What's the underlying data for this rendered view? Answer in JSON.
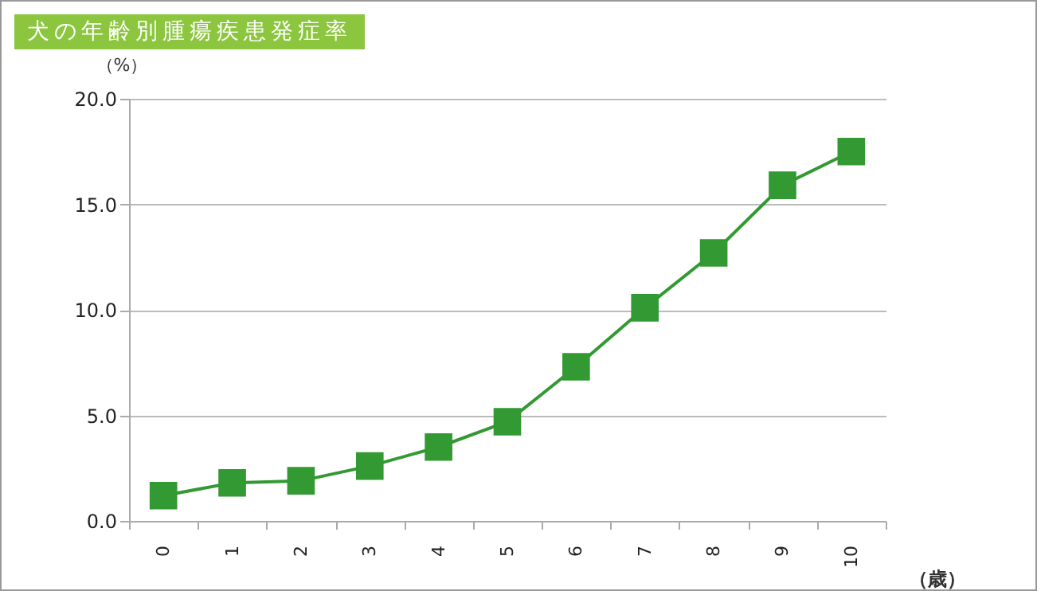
{
  "chart_data": {
    "type": "line",
    "title": "犬の年齢別腫瘍疾患発症率",
    "xlabel": "（歳）",
    "ylabel": "（%）",
    "categories": [
      "0",
      "1",
      "2",
      "3",
      "4",
      "5",
      "6",
      "7",
      "8",
      "9",
      "10"
    ],
    "series": [
      {
        "color": "#339933",
        "values": [
          1.2,
          1.8,
          1.9,
          2.6,
          3.5,
          4.7,
          7.3,
          10.1,
          12.7,
          15.9,
          17.5
        ]
      }
    ],
    "ylim": [
      0,
      20
    ],
    "yticks": [
      {
        "value": 0,
        "label": "0.0"
      },
      {
        "value": 5,
        "label": "5.0"
      },
      {
        "value": 10,
        "label": "10.0"
      },
      {
        "value": 15,
        "label": "15.0"
      },
      {
        "value": 20,
        "label": "20.0"
      }
    ],
    "grid": "y",
    "marker": "square",
    "legend": false
  }
}
